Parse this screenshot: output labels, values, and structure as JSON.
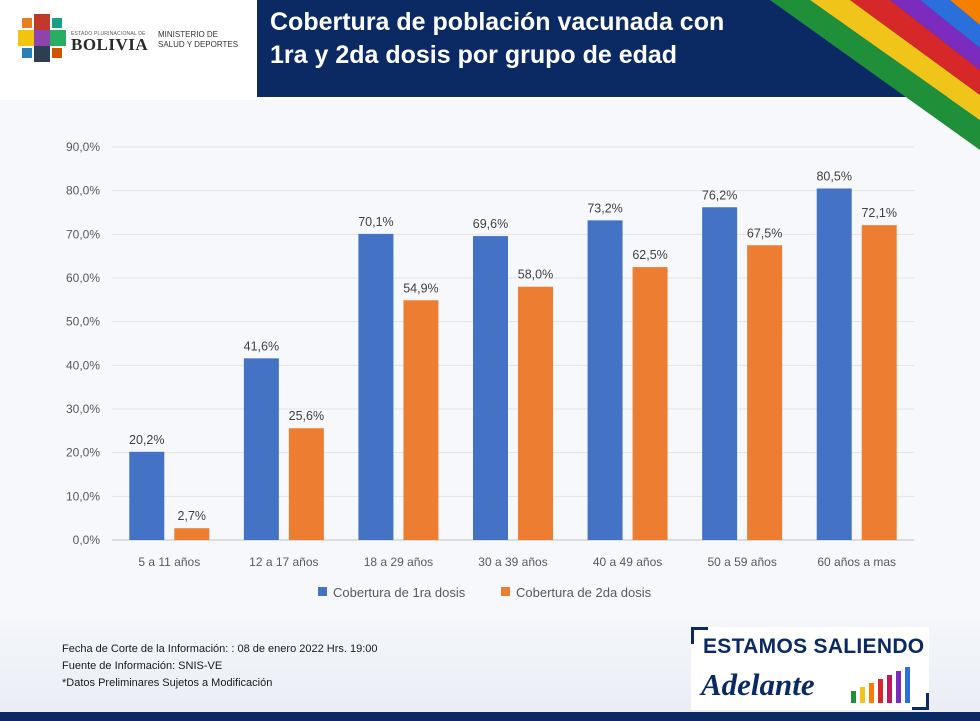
{
  "header": {
    "title_line1": "Cobertura de población vacunada con",
    "title_line2": "1ra y 2da dosis por grupo de edad",
    "logo_small": "ESTADO PLURINACIONAL DE",
    "logo_country": "BOLIVIA",
    "logo_ministry_line1": "MINISTERIO DE",
    "logo_ministry_line2": "SALUD Y DEPORTES"
  },
  "chart_data": {
    "type": "bar",
    "categories": [
      "5 a 11 años",
      "12 a 17 años",
      "18 a 29 años",
      "30 a 39 años",
      "40 a 49 años",
      "50 a 59 años",
      "60 años a mas"
    ],
    "series": [
      {
        "name": "Cobertura de 1ra dosis",
        "color": "#4472c4",
        "values": [
          20.2,
          41.6,
          70.1,
          69.6,
          73.2,
          76.2,
          80.5
        ],
        "labels": [
          "20,2%",
          "41,6%",
          "70,1%",
          "69,6%",
          "73,2%",
          "76,2%",
          "80,5%"
        ]
      },
      {
        "name": "Cobertura de 2da dosis",
        "color": "#ed7d31",
        "values": [
          2.7,
          25.6,
          54.9,
          58.0,
          62.5,
          67.5,
          72.1
        ],
        "labels": [
          "2,7%",
          "25,6%",
          "54,9%",
          "58,0%",
          "62,5%",
          "67,5%",
          "72,1%"
        ]
      }
    ],
    "yticks": [
      0,
      10,
      20,
      30,
      40,
      50,
      60,
      70,
      80,
      90
    ],
    "ytick_labels": [
      "0,0%",
      "10,0%",
      "20,0%",
      "30,0%",
      "40,0%",
      "50,0%",
      "60,0%",
      "70,0%",
      "80,0%",
      "90,0%"
    ],
    "ylim": [
      0,
      90
    ],
    "grid": true,
    "legend_position": "bottom"
  },
  "footer": {
    "note1": "Fecha de Corte de la Información: : 08 de enero 2022 Hrs. 19:00",
    "note2": "Fuente de Información: SNIS-VE",
    "note3": "*Datos Preliminares Sujetos a Modificación"
  },
  "badge": {
    "line1": "ESTAMOS SALIENDO",
    "line2": "Adelante"
  }
}
